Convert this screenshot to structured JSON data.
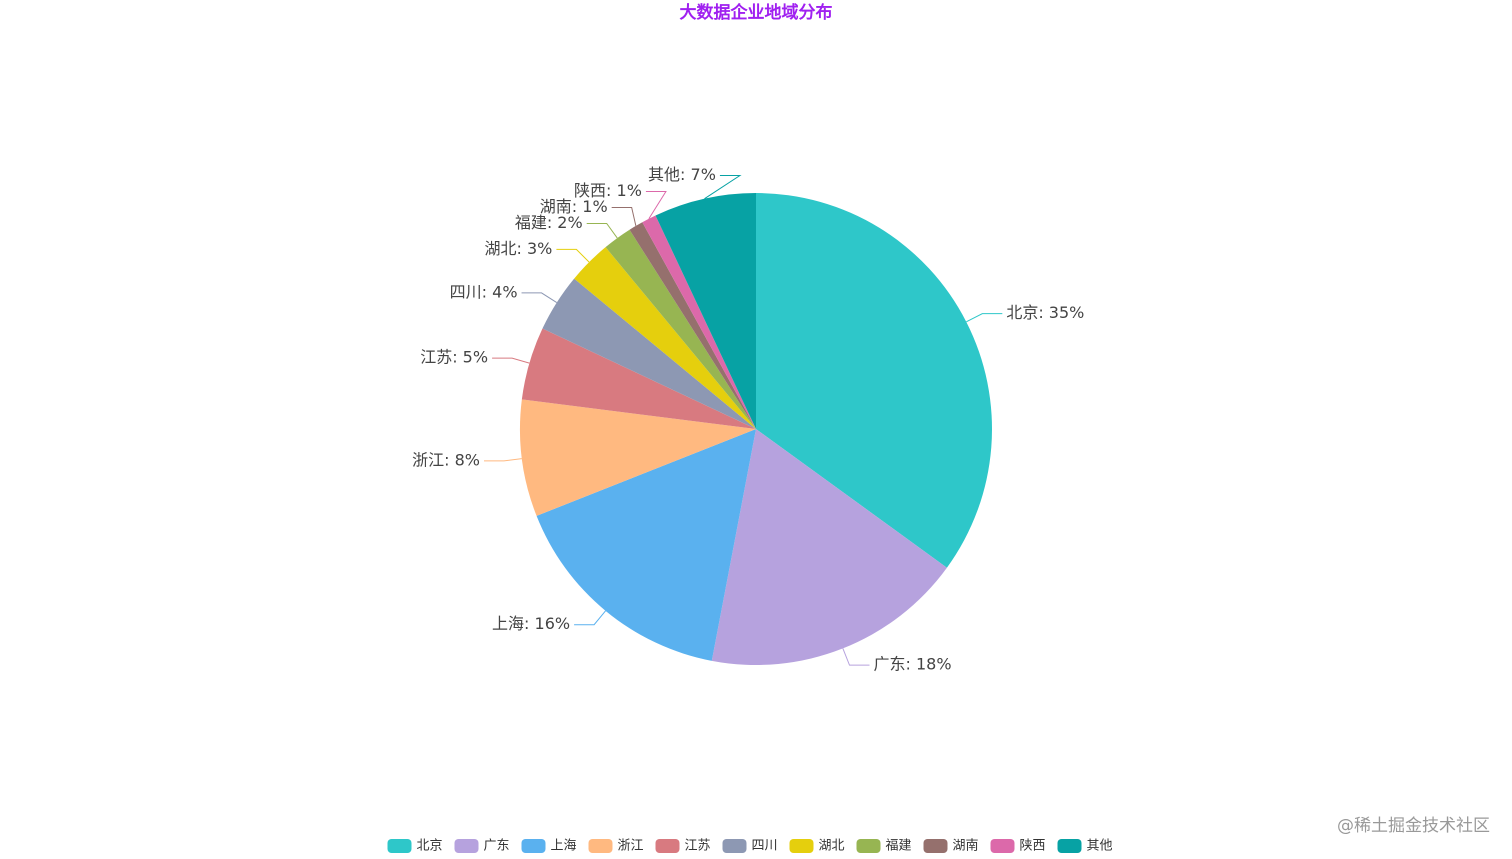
{
  "chart_data": {
    "type": "pie",
    "title": "大数据企业地域分布",
    "categories": [
      "北京",
      "广东",
      "上海",
      "浙江",
      "江苏",
      "四川",
      "湖北",
      "福建",
      "湖南",
      "陕西",
      "其他"
    ],
    "values": [
      35,
      18,
      16,
      8,
      5,
      4,
      3,
      2,
      1,
      1,
      7
    ],
    "value_labels": [
      "北京: 35%",
      "广东: 18%",
      "上海: 16%",
      "浙江: 8%",
      "江苏: 5%",
      "四川: 4%",
      "湖北: 3%",
      "福建: 2%",
      "湖南: 1%",
      "陕西: 1%",
      "其他: 7%"
    ],
    "colors": [
      "#2ec7c9",
      "#b6a2de",
      "#5ab1ef",
      "#ffb980",
      "#d87a80",
      "#8d98b3",
      "#e5cf0d",
      "#97b552",
      "#95706d",
      "#dc69aa",
      "#07a2a4"
    ],
    "legend": "bottom",
    "watermark": "@稀土掘金技术社区"
  }
}
